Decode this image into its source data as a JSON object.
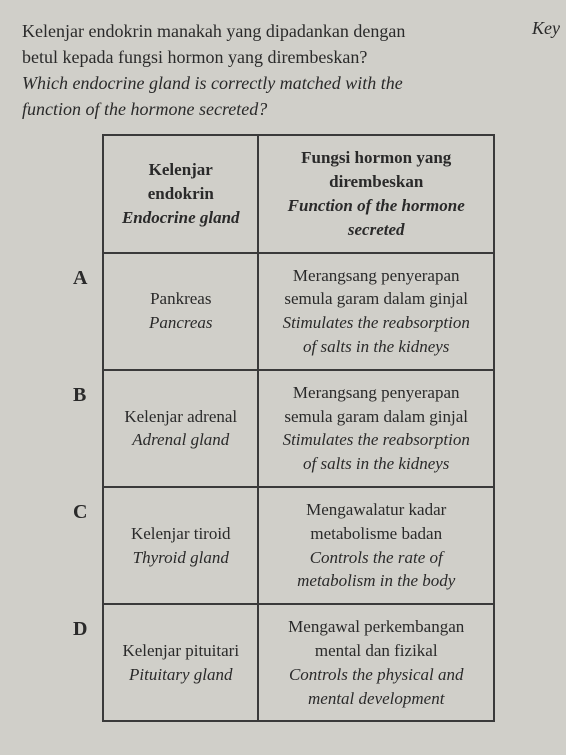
{
  "question": {
    "malay_line1": "Kelenjar endokrin manakah yang dipadankan dengan",
    "malay_line2": "betul kepada fungsi hormon yang dirembeskan?",
    "english_line1": "Which endocrine gland is correctly matched with the",
    "english_line2": "function of the hormone secreted?"
  },
  "side_label": "Key",
  "table": {
    "header": {
      "gland_malay_line1": "Kelenjar",
      "gland_malay_line2": "endokrin",
      "gland_english": "Endocrine gland",
      "func_malay_line1": "Fungsi hormon yang",
      "func_malay_line2": "dirembeskan",
      "func_english_line1": "Function of the hormone",
      "func_english_line2": "secreted"
    },
    "rows": [
      {
        "label": "A",
        "gland_malay": "Pankreas",
        "gland_english": "Pancreas",
        "func_malay_line1": "Merangsang penyerapan",
        "func_malay_line2": "semula garam dalam ginjal",
        "func_english_line1": "Stimulates the reabsorption",
        "func_english_line2": "of salts in the kidneys"
      },
      {
        "label": "B",
        "gland_malay": "Kelenjar adrenal",
        "gland_english": "Adrenal gland",
        "func_malay_line1": "Merangsang penyerapan",
        "func_malay_line2": "semula garam dalam ginjal",
        "func_english_line1": "Stimulates the reabsorption",
        "func_english_line2": "of salts in the kidneys"
      },
      {
        "label": "C",
        "gland_malay": "Kelenjar tiroid",
        "gland_english": "Thyroid gland",
        "func_malay_line1": "Mengawalatur kadar",
        "func_malay_line2": "metabolisme badan",
        "func_english_line1": "Controls the rate of",
        "func_english_line2": "metabolism in the body"
      },
      {
        "label": "D",
        "gland_malay": "Kelenjar pituitari",
        "gland_english": "Pituitary gland",
        "func_malay_line1": "Mengawal perkembangan",
        "func_malay_line2": "mental dan fizikal",
        "func_english_line1": "Controls the physical and",
        "func_english_line2": "mental development"
      }
    ]
  },
  "styling": {
    "background_color": "#d0cfc9",
    "text_color": "#2a2a2a",
    "border_color": "#3a3a3a",
    "font_family": "Times New Roman",
    "question_fontsize": 18,
    "table_fontsize": 17,
    "label_fontsize": 20
  }
}
